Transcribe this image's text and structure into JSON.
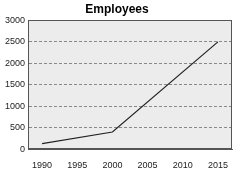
{
  "chart_data": {
    "type": "line",
    "title": "Employees",
    "x": [
      1990,
      2000,
      2015
    ],
    "values": [
      130,
      400,
      2500
    ],
    "color": "#222222",
    "xlim": [
      1988,
      2017
    ],
    "xticks": [
      1990,
      1995,
      2000,
      2005,
      2010,
      2015
    ],
    "ylim": [
      0,
      3000
    ],
    "yticks": [
      0,
      500,
      1000,
      1500,
      2000,
      2500,
      3000
    ],
    "grid": true
  }
}
